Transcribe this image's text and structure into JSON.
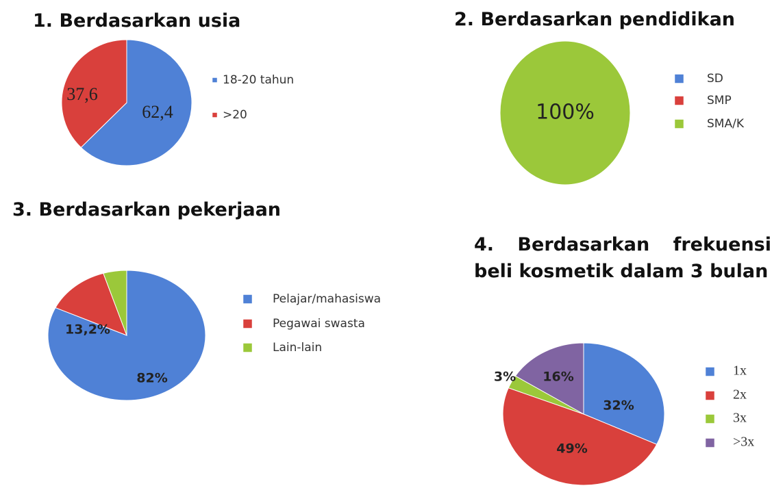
{
  "chart_data": [
    {
      "type": "pie",
      "title": "1. Berdasarkan usia",
      "categories": [
        "18-20 tahun",
        ">20"
      ],
      "values": [
        62.4,
        37.6
      ],
      "value_labels": [
        "62,4",
        "37,6"
      ],
      "colors": [
        "#4f81d6",
        "#d9403c"
      ]
    },
    {
      "type": "pie",
      "title": "2. Berdasarkan pendidikan",
      "categories": [
        "SD",
        "SMP",
        "SMA/K"
      ],
      "values": [
        0,
        0,
        100
      ],
      "value_labels": [
        null,
        null,
        "100%"
      ],
      "colors": [
        "#4f81d6",
        "#d9403c",
        "#9bc83a"
      ]
    },
    {
      "type": "pie",
      "title": "3. Berdasarkan pekerjaan",
      "categories": [
        "Pelajar/mahasiswa",
        "Pegawai swasta",
        "Lain-lain"
      ],
      "values": [
        82,
        13.2,
        4.8
      ],
      "value_labels": [
        "82%",
        "13,2%",
        null
      ],
      "colors": [
        "#4f81d6",
        "#d9403c",
        "#9bc83a"
      ]
    },
    {
      "type": "pie",
      "title": "4. Berdasarkan frekuensi beli kosmetik dalam 3 bulan",
      "categories": [
        "1x",
        "2x",
        "3x",
        ">3x"
      ],
      "values": [
        32,
        49,
        3,
        16
      ],
      "value_labels": [
        "32%",
        "49%",
        "3%",
        "16%"
      ],
      "colors": [
        "#4f81d6",
        "#d9403c",
        "#9bc83a",
        "#8064a2"
      ]
    }
  ]
}
